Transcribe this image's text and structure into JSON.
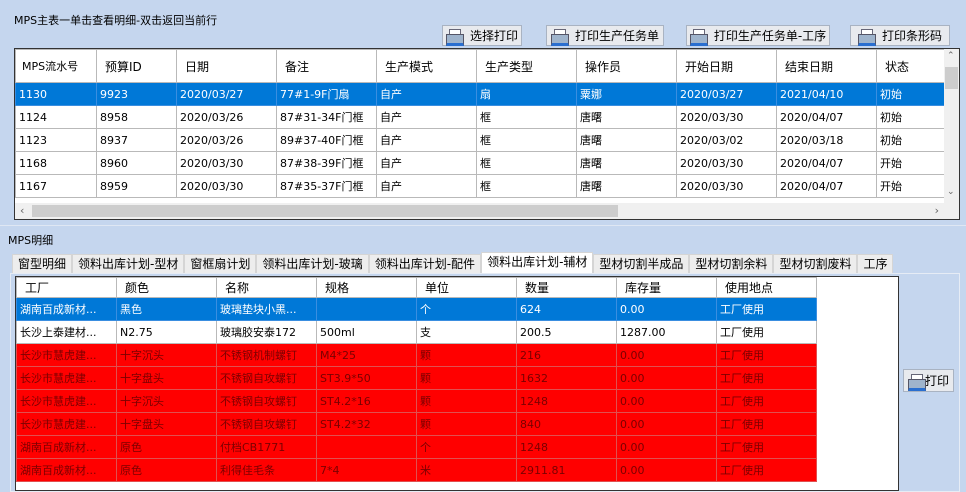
{
  "master": {
    "title": "MPS主表一单击查看明细-双击返回当前行",
    "buttons": [
      "选择打印",
      "打印生产任务单",
      "打印生产任务单-工序",
      "打印条形码"
    ],
    "columns": [
      "MPS流水号",
      "预算ID",
      "日期",
      "备注",
      "生产模式",
      "生产类型",
      "操作员",
      "开始日期",
      "结束日期",
      "状态"
    ],
    "rows": [
      [
        "1130",
        "9923",
        "2020/03/27",
        "77#1-9F门扇",
        "自产",
        "扇",
        "粟娜",
        "2020/03/27",
        "2021/04/10",
        "初始"
      ],
      [
        "1124",
        "8958",
        "2020/03/26",
        "87#31-34F门框",
        "自产",
        "框",
        "唐曙",
        "2020/03/30",
        "2020/04/07",
        "初始"
      ],
      [
        "1123",
        "8937",
        "2020/03/26",
        "89#37-40F门框",
        "自产",
        "框",
        "唐曙",
        "2020/03/02",
        "2020/03/18",
        "初始"
      ],
      [
        "1168",
        "8960",
        "2020/03/30",
        "87#38-39F门框",
        "自产",
        "框",
        "唐曙",
        "2020/03/30",
        "2020/04/07",
        "开始"
      ],
      [
        "1167",
        "8959",
        "2020/03/30",
        "87#35-37F门框",
        "自产",
        "框",
        "唐曙",
        "2020/03/30",
        "2020/04/07",
        "开始"
      ]
    ],
    "selected_row": 0
  },
  "detail": {
    "title": "MPS明细",
    "tabs": [
      "窗型明细",
      "领料出库计划-型材",
      "窗框扇计划",
      "领料出库计划-玻璃",
      "领料出库计划-配件",
      "领料出库计划-辅材",
      "型材切割半成品",
      "型材切割余料",
      "型材切割废料",
      "工序"
    ],
    "active_tab": 5,
    "columns": [
      "工厂",
      "颜色",
      "名称",
      "规格",
      "单位",
      "数量",
      "库存量",
      "使用地点"
    ],
    "rows": [
      {
        "state": "selected",
        "cells": [
          "湖南百成新材...",
          "黑色",
          "玻璃垫块小黑...",
          "",
          "个",
          "624",
          "0.00",
          "工厂使用"
        ]
      },
      {
        "state": "normal",
        "cells": [
          "长沙上泰建材...",
          "N2.75",
          "玻璃胶安泰172",
          "500ml",
          "支",
          "200.5",
          "1287.00",
          "工厂使用"
        ]
      },
      {
        "state": "shortage",
        "cells": [
          "长沙市慧虎建...",
          "十字沉头",
          "不锈钢机制螺钉",
          "M4*25",
          "颗",
          "216",
          "0.00",
          "工厂使用"
        ]
      },
      {
        "state": "shortage",
        "cells": [
          "长沙市慧虎建...",
          "十字盘头",
          "不锈钢自攻螺钉",
          "ST3.9*50",
          "颗",
          "1632",
          "0.00",
          "工厂使用"
        ]
      },
      {
        "state": "shortage",
        "cells": [
          "长沙市慧虎建...",
          "十字沉头",
          "不锈钢自攻螺钉",
          "ST4.2*16",
          "颗",
          "1248",
          "0.00",
          "工厂使用"
        ]
      },
      {
        "state": "shortage",
        "cells": [
          "长沙市慧虎建...",
          "十字盘头",
          "不锈钢自攻螺钉",
          "ST4.2*32",
          "颗",
          "840",
          "0.00",
          "工厂使用"
        ]
      },
      {
        "state": "shortage",
        "cells": [
          "湖南百成新材...",
          "原色",
          "付档CB1771",
          "",
          "个",
          "1248",
          "0.00",
          "工厂使用"
        ]
      },
      {
        "state": "shortage",
        "cells": [
          "湖南百成新材...",
          "原色",
          "利得佳毛条",
          "7*4",
          "米",
          "2911.81",
          "0.00",
          "工厂使用"
        ]
      }
    ],
    "print_button": "打印"
  },
  "colors": {
    "background": "#c5d6ee",
    "selection": "#0078d7",
    "shortage_row": "#ff0000"
  },
  "icons": [
    "printer-icon",
    "scroll-left-icon",
    "scroll-right-icon",
    "scroll-up-icon",
    "scroll-down-icon"
  ]
}
